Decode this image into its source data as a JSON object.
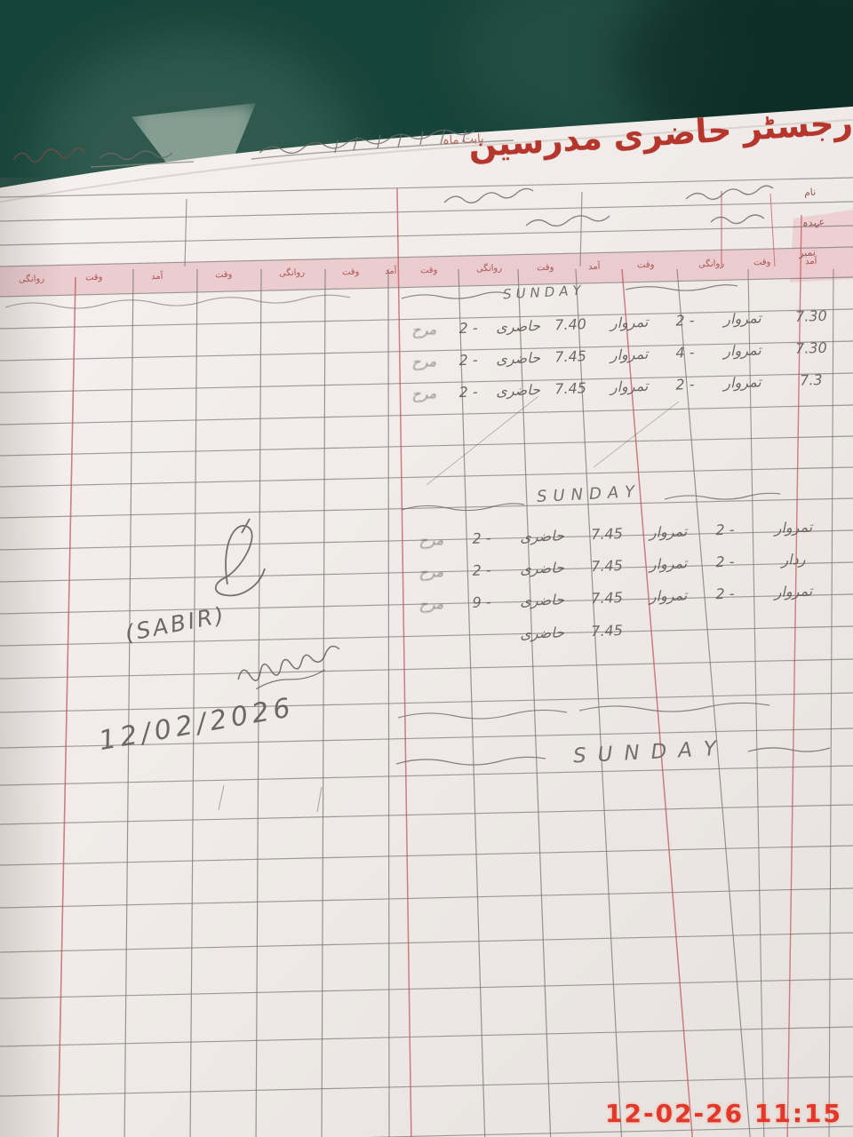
{
  "colors": {
    "surface_green": "#17443a",
    "paper": "#f0ebe8",
    "ruling_red": "#c05a5f",
    "ruling_gray": "#7a7672",
    "band_pink": "#e9c4c9",
    "title_red": "#b5362c",
    "pencil": "#5f5a56",
    "timestamp_red": "#e2372b"
  },
  "title": {
    "text": "رجسٹر حاضری مدرسین",
    "note": "بابت ماہ"
  },
  "header_band": {
    "labels": [
      "آمد",
      "وقت",
      "روانگی",
      "وقت",
      "آمد",
      "وقت",
      "روانگی",
      "وقت",
      "آمد",
      "وقت",
      "روانگی",
      "وقت",
      "آمد",
      "وقت",
      "روانگی"
    ]
  },
  "side_column": {
    "labels": [
      "نام",
      "عہدہ",
      "نمبر"
    ]
  },
  "attendance_blocks": [
    {
      "day_label": "SUNDAY",
      "rows": [
        [
          "7.30",
          "تمروار",
          "- 2",
          "تمروار",
          "7.40",
          "حاضری",
          "- 2",
          "مرح"
        ],
        [
          "7.30",
          "تمروار",
          "- 4",
          "تمروار",
          "7.45",
          "حاضری",
          "- 2",
          "مرح"
        ],
        [
          "7.3",
          "تمروار",
          "- 2",
          "تمروار",
          "7.45",
          "حاضری",
          "- 2",
          "مرح"
        ]
      ]
    },
    {
      "day_label": "SUNDAY",
      "rows": [
        [
          "تمروار",
          "- 2",
          "تمروار",
          "7.45",
          "حاضری",
          "- 2",
          "مرح"
        ],
        [
          "ردار",
          "- 2",
          "تمروار",
          "7.45",
          "حاضری",
          "- 2",
          "مرح"
        ],
        [
          "تمروار",
          "- 2",
          "تمروار",
          "7.45",
          "حاضری",
          "- 9",
          "مرح"
        ],
        [
          "",
          "",
          "",
          "7.45",
          "حاضری",
          "",
          ""
        ]
      ]
    },
    {
      "day_label": "SUNDAY",
      "rows": []
    }
  ],
  "signature": {
    "name": "(SABIR)",
    "date": "12/02/2026"
  },
  "camera_overlay": {
    "timestamp": "12-02-26 11:15"
  }
}
